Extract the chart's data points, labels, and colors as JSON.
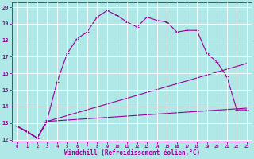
{
  "xlabel": "Windchill (Refroidissement éolien,°C)",
  "bg_color": "#b0e8e8",
  "grid_color": "#ffffff",
  "line_color": "#990099",
  "xmin": 0,
  "xmax": 23,
  "ymin": 12,
  "ymax": 20,
  "line1_x": [
    0,
    1,
    2,
    3,
    4,
    5,
    6,
    7,
    8,
    9,
    10,
    11,
    12,
    13,
    14,
    15,
    16,
    17,
    18,
    19,
    20,
    21,
    22,
    23
  ],
  "line1_y": [
    12.8,
    12.5,
    12.1,
    13.2,
    15.5,
    17.2,
    18.1,
    18.5,
    19.4,
    19.8,
    19.5,
    19.1,
    18.8,
    19.4,
    19.2,
    19.1,
    18.5,
    18.6,
    18.6,
    17.2,
    16.7,
    15.8,
    13.8,
    13.8
  ],
  "line2_x": [
    0,
    2,
    3,
    23
  ],
  "line2_y": [
    12.8,
    12.1,
    13.1,
    16.6
  ],
  "line3_x": [
    0,
    2,
    3,
    23
  ],
  "line3_y": [
    12.8,
    12.1,
    13.1,
    13.9
  ],
  "marker": "+",
  "markersize": 3,
  "linewidth": 0.8,
  "yticks": [
    12,
    13,
    14,
    15,
    16,
    17,
    18,
    19,
    20
  ],
  "xticks": [
    0,
    1,
    2,
    3,
    4,
    5,
    6,
    7,
    8,
    9,
    10,
    11,
    12,
    13,
    14,
    15,
    16,
    17,
    18,
    19,
    20,
    21,
    22,
    23
  ]
}
